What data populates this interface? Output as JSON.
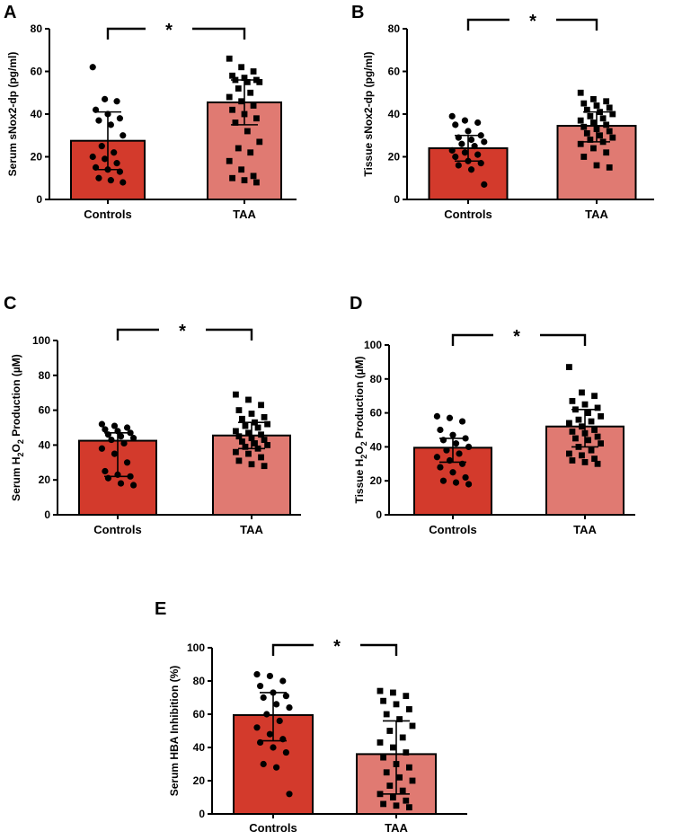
{
  "figure": {
    "colors": {
      "controls": "#d33a2c",
      "taa": "#e07a72",
      "axis": "#000000",
      "points": "#000000"
    }
  },
  "chart_data": [
    {
      "panel": "A",
      "type": "bar",
      "ylabel": "Serum sNox2-dp (pg/ml)",
      "ylabel_parts": {
        "pre": "Serum sNox2-dp (pg/ml)",
        "sub": "",
        "post": ""
      },
      "ylim": [
        0,
        80
      ],
      "yticks": [
        0,
        20,
        40,
        60,
        80
      ],
      "categories": [
        "Controls",
        "TAA"
      ],
      "values": [
        27.5,
        45.5
      ],
      "error_low": [
        14,
        35
      ],
      "error_high": [
        41,
        56
      ],
      "significance": "*",
      "points": [
        [
          62,
          47,
          46,
          42,
          40,
          38,
          37,
          35,
          30,
          25,
          22,
          20,
          19,
          17,
          15,
          14,
          13,
          10,
          9,
          8
        ],
        [
          66,
          62,
          60,
          58,
          57,
          56,
          56,
          55,
          55,
          52,
          50,
          48,
          46,
          44,
          42,
          40,
          38,
          36,
          32,
          27,
          24,
          22,
          18,
          14,
          11,
          10,
          9,
          8
        ]
      ]
    },
    {
      "panel": "B",
      "type": "bar",
      "ylabel": "Tissue sNox2-dp (pg/ml)",
      "ylabel_parts": {
        "pre": "Tissue sNox2-dp (pg/ml)",
        "sub": "",
        "post": ""
      },
      "ylim": [
        0,
        80
      ],
      "yticks": [
        0,
        20,
        40,
        60,
        80
      ],
      "categories": [
        "Controls",
        "TAA"
      ],
      "values": [
        24,
        34.5
      ],
      "error_low": [
        18,
        27
      ],
      "error_high": [
        30,
        41
      ],
      "significance": "*",
      "points": [
        [
          39,
          37,
          36,
          35,
          32,
          30,
          29,
          28,
          27,
          26,
          25,
          23,
          22,
          21,
          20,
          18,
          17,
          16,
          14,
          7
        ],
        [
          50,
          47,
          46,
          45,
          44,
          43,
          42,
          41,
          40,
          39,
          38,
          37,
          36,
          35,
          34,
          33,
          32,
          31,
          30,
          29,
          28,
          27,
          26,
          24,
          22,
          20,
          16,
          15
        ]
      ]
    },
    {
      "panel": "C",
      "type": "bar",
      "ylabel": "Serum H2O2 Production (µM)",
      "ylabel_parts": {
        "pre": "Serum H",
        "sub": "2",
        "mid": "O",
        "sub2": "2",
        "post": " Production (µM)"
      },
      "ylim": [
        0,
        100
      ],
      "yticks": [
        0,
        20,
        40,
        60,
        80,
        100
      ],
      "categories": [
        "Controls",
        "TAA"
      ],
      "values": [
        42.5,
        45.5
      ],
      "error_low": [
        22,
        38
      ],
      "error_high": [
        47,
        53
      ],
      "significance": "*",
      "points": [
        [
          52,
          51,
          50,
          49,
          48,
          47,
          46,
          45,
          44,
          43,
          41,
          38,
          35,
          30,
          25,
          23,
          22,
          21,
          18,
          17
        ],
        [
          69,
          66,
          63,
          60,
          58,
          56,
          55,
          53,
          52,
          51,
          50,
          48,
          47,
          46,
          45,
          44,
          43,
          42,
          41,
          40,
          39,
          38,
          36,
          35,
          33,
          31,
          29,
          28
        ]
      ]
    },
    {
      "panel": "D",
      "type": "bar",
      "ylabel": "Tissue H2O2 Production (µM)",
      "ylabel_parts": {
        "pre": "Tissue H",
        "sub": "2",
        "mid": "O",
        "sub2": "2",
        "post": " Production (µM)"
      },
      "ylim": [
        0,
        100
      ],
      "yticks": [
        0,
        20,
        40,
        60,
        80,
        100
      ],
      "categories": [
        "Controls",
        "TAA"
      ],
      "values": [
        39.5,
        52
      ],
      "error_low": [
        31,
        40
      ],
      "error_high": [
        45,
        62
      ],
      "significance": "*",
      "points": [
        [
          58,
          57,
          55,
          50,
          47,
          45,
          44,
          42,
          40,
          38,
          36,
          34,
          32,
          30,
          28,
          25,
          22,
          20,
          19,
          18
        ],
        [
          87,
          72,
          70,
          67,
          65,
          63,
          62,
          60,
          58,
          56,
          55,
          54,
          52,
          50,
          49,
          48,
          46,
          45,
          44,
          42,
          40,
          38,
          36,
          35,
          33,
          32,
          31,
          30
        ]
      ]
    },
    {
      "panel": "E",
      "type": "bar",
      "ylabel": "Serum HBA Inhibition  (%)",
      "ylabel_parts": {
        "pre": "Serum HBA Inhibition  (%)",
        "sub": "",
        "post": ""
      },
      "ylim": [
        0,
        100
      ],
      "yticks": [
        0,
        20,
        40,
        60,
        80,
        100
      ],
      "categories": [
        "Controls",
        "TAA"
      ],
      "values": [
        59.5,
        36
      ],
      "error_low": [
        44,
        12
      ],
      "error_high": [
        73,
        56
      ],
      "significance": "*",
      "points": [
        [
          84,
          83,
          80,
          77,
          73,
          71,
          70,
          66,
          64,
          60,
          56,
          52,
          48,
          45,
          43,
          40,
          37,
          30,
          28,
          12
        ],
        [
          74,
          73,
          71,
          68,
          66,
          63,
          60,
          57,
          53,
          50,
          46,
          43,
          40,
          37,
          34,
          30,
          28,
          25,
          22,
          20,
          17,
          14,
          12,
          10,
          8,
          6,
          5,
          4
        ]
      ]
    }
  ]
}
